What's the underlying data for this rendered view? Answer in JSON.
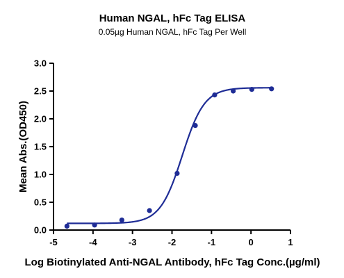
{
  "chart_data": {
    "type": "scatter",
    "title": "Human NGAL, hFc Tag ELISA",
    "subtitle": "0.05µg Human NGAL, hFc Tag Per Well",
    "xlabel": "Log Biotinylated Anti-NGAL Antibody, hFc Tag Conc.(µg/ml)",
    "ylabel": "Mean Abs.(OD450)",
    "xlim": [
      -5,
      1
    ],
    "ylim": [
      0,
      3.0
    ],
    "x_ticks": [
      "-5",
      "-4",
      "-3",
      "-2",
      "-1",
      "0",
      "1"
    ],
    "y_ticks": [
      "0.0",
      "0.5",
      "1.0",
      "1.5",
      "2.0",
      "2.5",
      "3.0"
    ],
    "grid": false,
    "legend": "none",
    "series": [
      {
        "color": "#1f2d96",
        "x": [
          -4.66,
          -3.96,
          -3.27,
          -2.57,
          -1.87,
          -1.41,
          -0.92,
          -0.45,
          0.02,
          0.52
        ],
        "y": [
          0.07,
          0.09,
          0.18,
          0.35,
          1.02,
          1.88,
          2.43,
          2.5,
          2.53,
          2.54
        ]
      }
    ],
    "fit_curve": {
      "type": "4PL",
      "bottom": 0.12,
      "top": 2.56,
      "log_ec50": -1.74,
      "hill_slope": 1.55,
      "color": "#1f2d96",
      "x_range": [
        -4.66,
        0.52
      ]
    }
  }
}
